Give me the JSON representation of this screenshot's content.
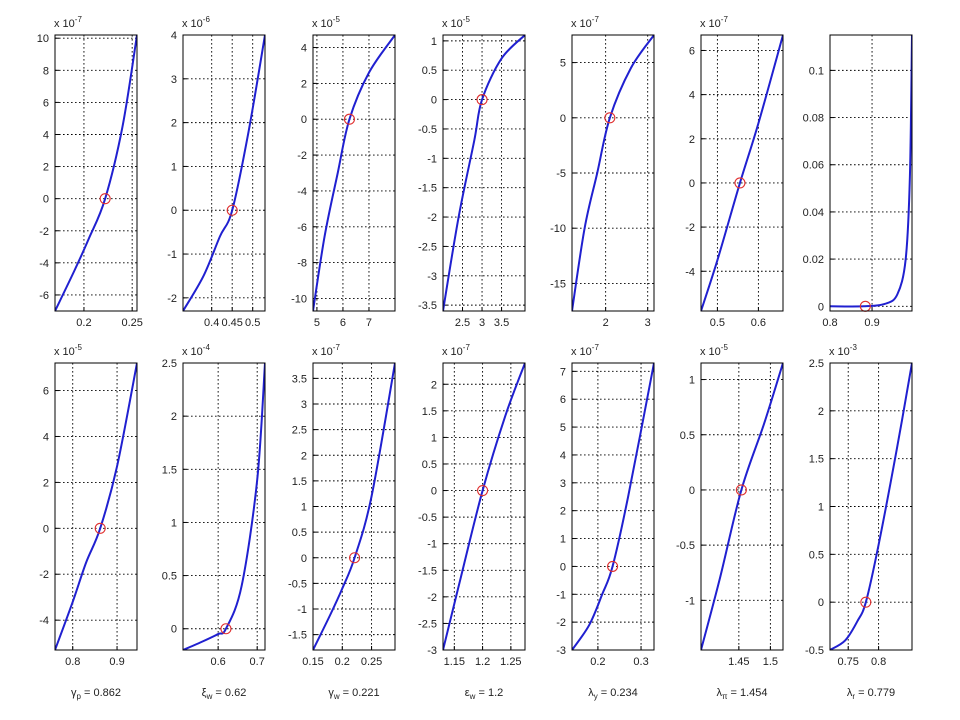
{
  "figure": {
    "line_color": "#2020d0",
    "marker_color": "#e03030",
    "grid_color": "#000000"
  },
  "chart_data": [
    {
      "type": "line",
      "row": 0,
      "col": 0,
      "xlim": [
        0.17,
        0.255
      ],
      "ylim": [
        -7,
        10.2
      ],
      "xticks": [
        0.2,
        0.25
      ],
      "xtick_labels": [
        "0.2",
        "0.25"
      ],
      "yticks": [
        -6,
        -4,
        -2,
        0,
        2,
        4,
        6,
        8,
        10
      ],
      "ytick_labels": [
        "-6",
        "-4",
        "-2",
        "0",
        "2",
        "4",
        "6",
        "8",
        "10"
      ],
      "scale": {
        "base": "x 10",
        "exp": "-7"
      },
      "x": [
        0.17,
        0.19,
        0.205,
        0.222,
        0.24,
        0.255
      ],
      "y": [
        -7,
        -4.5,
        -2.5,
        0,
        4.5,
        10.2
      ],
      "marker": [
        0.222,
        0
      ]
    },
    {
      "type": "line",
      "row": 0,
      "col": 1,
      "xlim": [
        0.33,
        0.53
      ],
      "ylim": [
        -2.3,
        4
      ],
      "xticks": [
        0.4,
        0.45,
        0.5
      ],
      "xtick_labels": [
        "0.4",
        "0.45",
        "0.5"
      ],
      "yticks": [
        -2,
        -1,
        0,
        1,
        2,
        3,
        4
      ],
      "ytick_labels": [
        "-2",
        "-1",
        "0",
        "1",
        "2",
        "3",
        "4"
      ],
      "scale": {
        "base": "x 10",
        "exp": "-6"
      },
      "x": [
        0.33,
        0.38,
        0.42,
        0.45,
        0.49,
        0.53
      ],
      "y": [
        -2.3,
        -1.5,
        -0.6,
        0,
        1.8,
        4
      ],
      "marker": [
        0.45,
        0
      ]
    },
    {
      "type": "line",
      "row": 0,
      "col": 2,
      "xlim": [
        4.85,
        8
      ],
      "ylim": [
        -10.7,
        4.7
      ],
      "xticks": [
        5,
        6,
        7
      ],
      "xtick_labels": [
        "5",
        "6",
        "7"
      ],
      "yticks": [
        -10,
        -8,
        -6,
        -4,
        -2,
        0,
        2,
        4
      ],
      "ytick_labels": [
        "-10",
        "-8",
        "-6",
        "-4",
        "-2",
        "0",
        "2",
        "4"
      ],
      "scale": {
        "base": "x 10",
        "exp": "-5"
      },
      "x": [
        4.85,
        5.3,
        5.8,
        6.25,
        7,
        8
      ],
      "y": [
        -10.7,
        -6.5,
        -3,
        0,
        2.6,
        4.7
      ],
      "marker": [
        6.25,
        0
      ]
    },
    {
      "type": "line",
      "row": 0,
      "col": 3,
      "xlim": [
        2,
        4.1
      ],
      "ylim": [
        -3.6,
        1.1
      ],
      "xticks": [
        2.5,
        3,
        3.5
      ],
      "xtick_labels": [
        "2.5",
        "3",
        "3.5"
      ],
      "yticks": [
        -3.5,
        -3,
        -2.5,
        -2,
        -1.5,
        -1,
        -0.5,
        0,
        0.5,
        1
      ],
      "ytick_labels": [
        "-3.5",
        "-3",
        "-2.5",
        "-2",
        "-1.5",
        "-1",
        "-0.5",
        "0",
        "0.5",
        "1"
      ],
      "scale": {
        "base": "x 10",
        "exp": "-5"
      },
      "x": [
        2,
        2.4,
        2.8,
        3,
        3.5,
        4.1
      ],
      "y": [
        -3.6,
        -2,
        -0.7,
        0,
        0.7,
        1.1
      ],
      "marker": [
        3,
        0
      ]
    },
    {
      "type": "line",
      "row": 0,
      "col": 4,
      "xlim": [
        1.2,
        3.15
      ],
      "ylim": [
        -17.5,
        7.5
      ],
      "xticks": [
        2,
        3
      ],
      "xtick_labels": [
        "2",
        "3"
      ],
      "yticks": [
        -15,
        -10,
        -5,
        0,
        5
      ],
      "ytick_labels": [
        "-15",
        "-10",
        "-5",
        "0",
        "5"
      ],
      "scale": {
        "base": "x 10",
        "exp": "-7"
      },
      "x": [
        1.2,
        1.5,
        1.8,
        2.1,
        2.6,
        3.15
      ],
      "y": [
        -17.5,
        -10,
        -5,
        0,
        4.5,
        7.5
      ],
      "marker": [
        2.1,
        0
      ]
    },
    {
      "type": "line",
      "row": 0,
      "col": 5,
      "xlim": [
        0.46,
        0.66
      ],
      "ylim": [
        -5.8,
        6.7
      ],
      "xticks": [
        0.5,
        0.6
      ],
      "xtick_labels": [
        "0.5",
        "0.6"
      ],
      "yticks": [
        -4,
        -2,
        0,
        2,
        4,
        6
      ],
      "ytick_labels": [
        "-4",
        "-2",
        "0",
        "2",
        "4",
        "6"
      ],
      "scale": {
        "base": "x 10",
        "exp": "-7"
      },
      "x": [
        0.46,
        0.5,
        0.555,
        0.6,
        0.66
      ],
      "y": [
        -5.8,
        -3.5,
        0,
        2.7,
        6.7
      ],
      "marker": [
        0.555,
        0
      ]
    },
    {
      "type": "line",
      "row": 0,
      "col": 6,
      "xlim": [
        0.8,
        0.995
      ],
      "ylim": [
        -0.002,
        0.115
      ],
      "xticks": [
        0.8,
        0.9
      ],
      "xtick_labels": [
        "0.8",
        "0.9"
      ],
      "yticks": [
        0,
        0.02,
        0.04,
        0.06,
        0.08,
        0.1
      ],
      "ytick_labels": [
        "0",
        "0.02",
        "0.04",
        "0.06",
        "0.08",
        "0.1"
      ],
      "scale": null,
      "x": [
        0.8,
        0.88,
        0.93,
        0.96,
        0.98,
        0.99,
        0.995
      ],
      "y": [
        0,
        0,
        0.001,
        0.005,
        0.02,
        0.055,
        0.115
      ],
      "marker": [
        0.884,
        0
      ]
    },
    {
      "type": "line",
      "row": 1,
      "col": 0,
      "xlim": [
        0.76,
        0.945
      ],
      "ylim": [
        -5.3,
        7.2
      ],
      "xticks": [
        0.8,
        0.9
      ],
      "xtick_labels": [
        "0.8",
        "0.9"
      ],
      "yticks": [
        -4,
        -2,
        0,
        2,
        4,
        6
      ],
      "ytick_labels": [
        "-4",
        "-2",
        "0",
        "2",
        "4",
        "6"
      ],
      "scale": {
        "base": "x 10",
        "exp": "-5"
      },
      "x": [
        0.76,
        0.8,
        0.83,
        0.862,
        0.9,
        0.945
      ],
      "y": [
        -5.3,
        -3.2,
        -1.5,
        0,
        2.7,
        7.2
      ],
      "marker": [
        0.862,
        0
      ]
    },
    {
      "type": "line",
      "row": 1,
      "col": 1,
      "xlim": [
        0.51,
        0.72
      ],
      "ylim": [
        -0.2,
        2.5
      ],
      "xticks": [
        0.6,
        0.7
      ],
      "xtick_labels": [
        "0.6",
        "0.7"
      ],
      "yticks": [
        0,
        0.5,
        1,
        1.5,
        2,
        2.5
      ],
      "ytick_labels": [
        "0",
        "0.5",
        "1",
        "1.5",
        "2",
        "2.5"
      ],
      "scale": {
        "base": "x 10",
        "exp": "-4"
      },
      "x": [
        0.51,
        0.56,
        0.6,
        0.62,
        0.66,
        0.7,
        0.72
      ],
      "y": [
        -0.2,
        -0.12,
        -0.05,
        0,
        0.4,
        1.4,
        2.5
      ],
      "marker": [
        0.62,
        0
      ]
    },
    {
      "type": "line",
      "row": 1,
      "col": 2,
      "xlim": [
        0.15,
        0.29
      ],
      "ylim": [
        -1.8,
        3.8
      ],
      "xticks": [
        0.15,
        0.2,
        0.25
      ],
      "xtick_labels": [
        "0.15",
        "0.2",
        "0.25"
      ],
      "yticks": [
        -1.5,
        -1,
        -0.5,
        0,
        0.5,
        1,
        1.5,
        2,
        2.5,
        3,
        3.5
      ],
      "ytick_labels": [
        "-1.5",
        "-1",
        "-0.5",
        "0",
        "0.5",
        "1",
        "1.5",
        "2",
        "2.5",
        "3",
        "3.5"
      ],
      "scale": {
        "base": "x 10",
        "exp": "-7"
      },
      "x": [
        0.15,
        0.18,
        0.2,
        0.221,
        0.25,
        0.29
      ],
      "y": [
        -1.8,
        -1.1,
        -0.6,
        0,
        1.2,
        3.8
      ],
      "marker": [
        0.221,
        0
      ]
    },
    {
      "type": "line",
      "row": 1,
      "col": 3,
      "xlim": [
        1.13,
        1.275
      ],
      "ylim": [
        -3,
        2.4
      ],
      "xticks": [
        1.15,
        1.2,
        1.25
      ],
      "xtick_labels": [
        "1.15",
        "1.2",
        "1.25"
      ],
      "yticks": [
        -3,
        -2.5,
        -2,
        -1.5,
        -1,
        -0.5,
        0,
        0.5,
        1,
        1.5,
        2
      ],
      "ytick_labels": [
        "-3",
        "-2.5",
        "-2",
        "-1.5",
        "-1",
        "-0.5",
        "0",
        "0.5",
        "1",
        "1.5",
        "2"
      ],
      "scale": {
        "base": "x 10",
        "exp": "-7"
      },
      "x": [
        1.13,
        1.16,
        1.2,
        1.24,
        1.275
      ],
      "y": [
        -3,
        -1.7,
        0,
        1.4,
        2.4
      ],
      "marker": [
        1.2,
        0
      ]
    },
    {
      "type": "line",
      "row": 1,
      "col": 4,
      "xlim": [
        0.14,
        0.33
      ],
      "ylim": [
        -3,
        7.3
      ],
      "xticks": [
        0.2,
        0.3
      ],
      "xtick_labels": [
        "0.2",
        "0.3"
      ],
      "yticks": [
        -3,
        -2,
        -1,
        0,
        1,
        2,
        3,
        4,
        5,
        6,
        7
      ],
      "ytick_labels": [
        "-3",
        "-2",
        "-1",
        "0",
        "1",
        "2",
        "3",
        "4",
        "5",
        "6",
        "7"
      ],
      "scale": {
        "base": "x 10",
        "exp": "-7"
      },
      "x": [
        0.14,
        0.18,
        0.21,
        0.234,
        0.27,
        0.33
      ],
      "y": [
        -3,
        -2.1,
        -1,
        0,
        2.5,
        7.3
      ],
      "marker": [
        0.234,
        0
      ]
    },
    {
      "type": "line",
      "row": 1,
      "col": 5,
      "xlim": [
        1.39,
        1.52
      ],
      "ylim": [
        -1.45,
        1.15
      ],
      "xticks": [
        1.45,
        1.5
      ],
      "xtick_labels": [
        "1.45",
        "1.5"
      ],
      "yticks": [
        -1,
        -0.5,
        0,
        0.5,
        1
      ],
      "ytick_labels": [
        "-1",
        "-0.5",
        "0",
        "0.5",
        "1"
      ],
      "scale": {
        "base": "x 10",
        "exp": "-5"
      },
      "x": [
        1.39,
        1.42,
        1.454,
        1.49,
        1.52
      ],
      "y": [
        -1.45,
        -0.8,
        0,
        0.6,
        1.15
      ],
      "marker": [
        1.454,
        0
      ]
    },
    {
      "type": "line",
      "row": 1,
      "col": 6,
      "xlim": [
        0.72,
        0.855
      ],
      "ylim": [
        -0.5,
        2.5
      ],
      "xticks": [
        0.75,
        0.8
      ],
      "xtick_labels": [
        "0.75",
        "0.8"
      ],
      "yticks": [
        -0.5,
        0,
        0.5,
        1,
        1.5,
        2,
        2.5
      ],
      "ytick_labels": [
        "-0.5",
        "0",
        "0.5",
        "1",
        "1.5",
        "2",
        "2.5"
      ],
      "scale": {
        "base": "x 10",
        "exp": "-3"
      },
      "x": [
        0.72,
        0.745,
        0.765,
        0.779,
        0.8,
        0.83,
        0.855
      ],
      "y": [
        -0.5,
        -0.4,
        -0.2,
        0,
        0.6,
        1.6,
        2.5
      ],
      "marker": [
        0.779,
        0
      ]
    }
  ],
  "param_labels": [
    {
      "main": "γ",
      "sub": "p",
      "value": " = 0.862"
    },
    {
      "main": "ξ",
      "sub": "w",
      "value": " = 0.62"
    },
    {
      "main": "γ",
      "sub": "w",
      "value": " = 0.221"
    },
    {
      "main": "ε",
      "sub": "w",
      "value": " = 1.2"
    },
    {
      "main": "λ",
      "sub": "y",
      "value": " = 0.234"
    },
    {
      "main": "λ",
      "sub": "π",
      "value": " = 1.454"
    },
    {
      "main": "λ",
      "sub": "r",
      "value": " = 0.779"
    }
  ]
}
